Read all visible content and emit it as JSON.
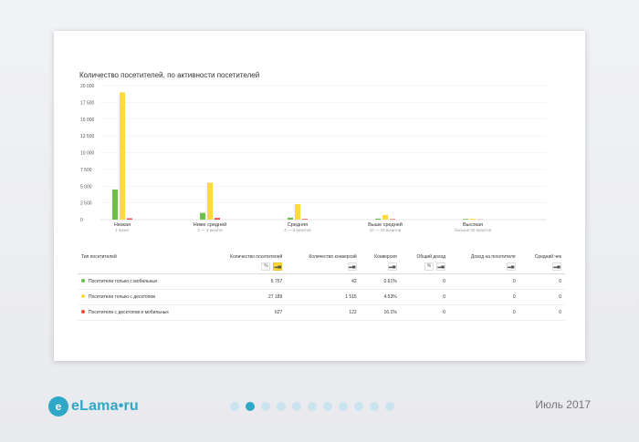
{
  "report": {
    "title": "Количество посетителей, по активности посетителей"
  },
  "chart_data": {
    "type": "bar",
    "ylim": [
      0,
      20000
    ],
    "y_ticks": [
      "20 000",
      "17 500",
      "15 000",
      "12 500",
      "10 000",
      "7 500",
      "5 000",
      "2 500",
      "0"
    ],
    "categories": [
      "Низкая",
      "Ниже средней",
      "Средняя",
      "Выше средней",
      "Высокая"
    ],
    "category_subtitles": [
      "1 визит",
      "2 — 3 визита",
      "4 — 9 визитов",
      "10 — 19 визитов",
      "больше 20 визитов"
    ],
    "series": [
      {
        "name": "Посетители только с мобильных",
        "color": "#6cc04a",
        "values": [
          4500,
          1000,
          300,
          150,
          100
        ]
      },
      {
        "name": "Посетители только с десктопов",
        "color": "#ffd93d",
        "values": [
          19000,
          5500,
          2300,
          700,
          150
        ]
      },
      {
        "name": "Посетители с десктопов и мобильных",
        "color": "#f0493f",
        "values": [
          200,
          250,
          100,
          80,
          30
        ]
      }
    ]
  },
  "table": {
    "headers": [
      "Тип посетителей",
      "Количество посетителей",
      "Количество конверсий",
      "Конверсия",
      "Общий доход",
      "Доход на посетителя",
      "Средний чек"
    ],
    "rows": [
      {
        "label": "Посетители только с мобильных",
        "color": "#6cc04a",
        "visitors": "5 757",
        "conversions": "42",
        "conversion_rate": "0.61%",
        "total_income": "0",
        "income_per_visitor": "0",
        "avg_check": "0"
      },
      {
        "label": "Посетители только с десктопов",
        "color": "#ffd93d",
        "visitors": "27 189",
        "conversions": "1 515",
        "conversion_rate": "4.53%",
        "total_income": "0",
        "income_per_visitor": "0",
        "avg_check": "0"
      },
      {
        "label": "Посетители с десктопов и мобильных",
        "color": "#f0493f",
        "visitors": "627",
        "conversions": "122",
        "conversion_rate": "16.1%",
        "total_income": "0",
        "income_per_visitor": "0",
        "avg_check": "0"
      }
    ]
  },
  "footer": {
    "logo_text": "eLama•ru",
    "date": "Июль 2017",
    "pager_total": 11,
    "pager_active": 2,
    "brand_color": "#2fa7c6"
  }
}
